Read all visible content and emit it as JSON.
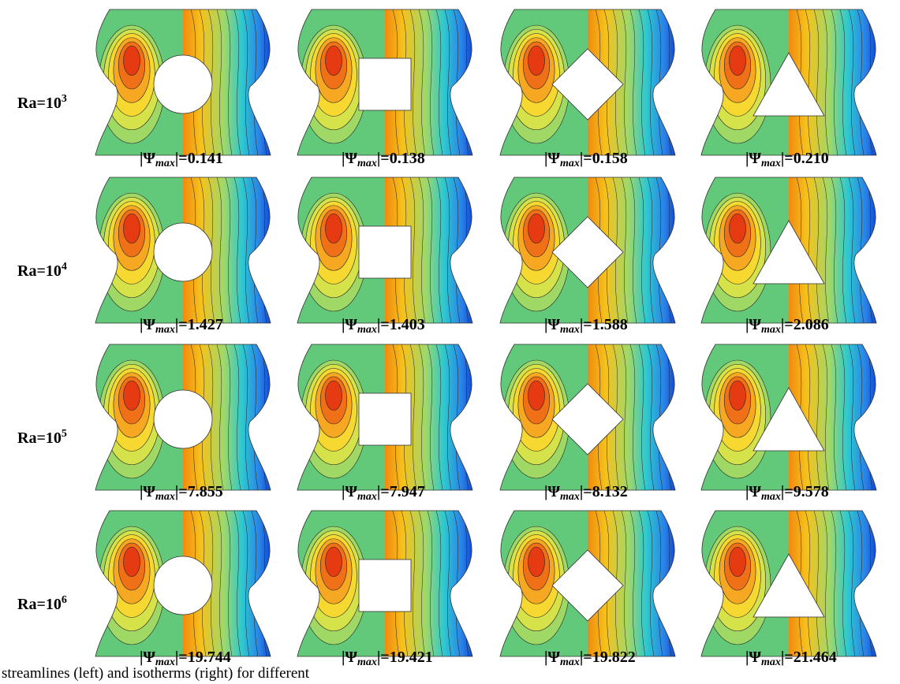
{
  "label_prefix": "|Ψ",
  "label_subscript": "max",
  "label_suffix": "|=",
  "rows": [
    {
      "ra": "Ra=10",
      "exponent": "3",
      "values": [
        "0.141",
        "0.138",
        "0.158",
        "0.210"
      ]
    },
    {
      "ra": "Ra=10",
      "exponent": "4",
      "values": [
        "1.427",
        "1.403",
        "1.588",
        "2.086"
      ]
    },
    {
      "ra": "Ra=10",
      "exponent": "5",
      "values": [
        "7.855",
        "7.947",
        "8.132",
        "9.578"
      ]
    },
    {
      "ra": "Ra=10",
      "exponent": "6",
      "values": [
        "19.744",
        "19.421",
        "19.822",
        "21.464"
      ]
    }
  ],
  "caption": "streamlines (left) and isotherms (right) for different"
}
